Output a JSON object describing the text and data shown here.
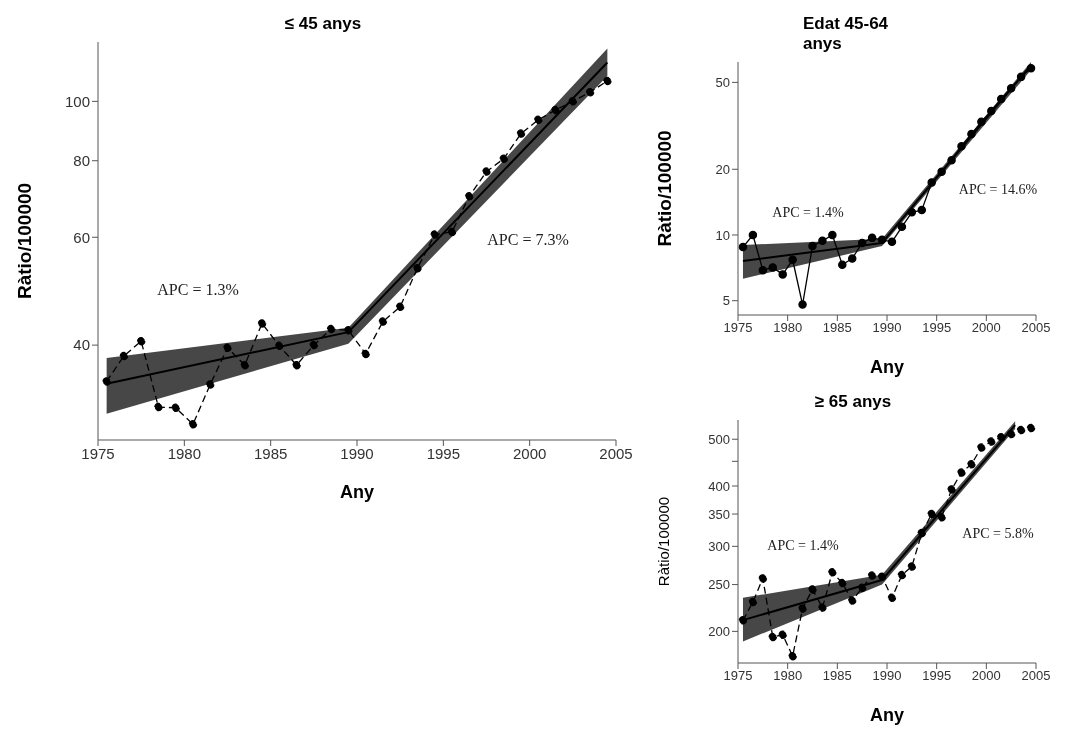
{
  "chart_data": [
    {
      "type": "line",
      "title": "≤ 45 anys",
      "xlabel": "Any",
      "ylabel": "Ràtio/100000",
      "log": "y",
      "xlim": [
        1975,
        2005
      ],
      "xticks": [
        1975,
        1980,
        1985,
        1990,
        1995,
        2000,
        2005
      ],
      "ylim": [
        28,
        125
      ],
      "yticks": [
        40,
        60,
        80,
        100
      ],
      "annotations": [
        "APC = 1.3%",
        "APC = 7.3%"
      ],
      "series": [
        {
          "color": "#000000",
          "marker": "circle",
          "line_style": "dashed",
          "x": [
            1975.5,
            1976.5,
            1977.5,
            1978.5,
            1979.5,
            1980.5,
            1981.5,
            1982.5,
            1983.5,
            1984.5,
            1985.5,
            1986.5,
            1987.5,
            1988.5,
            1989.5,
            1990.5,
            1991.5,
            1992.5,
            1993.5,
            1994.5,
            1995.5,
            1996.5,
            1997.5,
            1998.5,
            1999.5,
            2000.5,
            2001.5,
            2002.5,
            2003.5,
            2004.5
          ],
          "values": [
            34.9,
            38.4,
            40.6,
            31.7,
            31.6,
            29.7,
            34.5,
            39.6,
            37.1,
            43.4,
            39.9,
            37.1,
            40.0,
            42.5,
            42.3,
            38.7,
            43.7,
            46.2,
            53.4,
            60.6,
            61.2,
            70.0,
            76.8,
            80.6,
            88.6,
            93.3,
            96.8,
            100,
            103.5,
            108
          ]
        },
        {
          "color": "#000000",
          "marker": "none",
          "line_style": "solid",
          "x": [
            1975.5,
            1989.5,
            2004.5
          ],
          "values": [
            34.6,
            42.0,
            115.7
          ],
          "lower": [
            30.9,
            40.2,
            110
          ],
          "upper": [
            38.1,
            42.7,
            122
          ]
        }
      ]
    },
    {
      "type": "line",
      "title": "Edat 45-64 anys",
      "xlabel": "Any",
      "ylabel": "Ràtio/100000",
      "log": "y",
      "xlim": [
        1975,
        2005
      ],
      "xticks": [
        1975,
        1980,
        1985,
        1990,
        1995,
        2000,
        2005
      ],
      "ylim": [
        4.3,
        62
      ],
      "yticks": [
        5,
        10,
        20,
        50
      ],
      "annotations": [
        "APC = 1.4%",
        "APC = 14.6%"
      ],
      "series": [
        {
          "color": "#000000",
          "marker": "circle",
          "line_style": "solid",
          "x": [
            1975.5,
            1976.5,
            1977.5,
            1978.5,
            1979.5,
            1980.5,
            1981.5,
            1982.5,
            1983.5,
            1984.5,
            1985.5,
            1986.5,
            1987.5,
            1988.5,
            1989.5,
            1990.5,
            1991.5,
            1992.5,
            1993.5,
            1994.5,
            1995.5,
            1996.5,
            1997.5,
            1998.5,
            1999.5,
            2000.5,
            2001.5,
            2002.5,
            2003.5,
            2004.5
          ],
          "values": [
            8.8,
            10.0,
            6.9,
            7.1,
            6.6,
            7.7,
            4.8,
            8.9,
            9.4,
            10.0,
            7.3,
            7.8,
            9.2,
            9.7,
            9.5,
            9.3,
            10.9,
            12.7,
            13.0,
            17.4,
            19.5,
            22,
            25.5,
            29,
            33,
            37,
            42,
            47,
            53,
            58
          ]
        },
        {
          "color": "#000000",
          "marker": "none",
          "line_style": "solid",
          "x": [
            1975.5,
            1989.5,
            2004.5
          ],
          "values": [
            7.6,
            9.2,
            60
          ],
          "lower": [
            6.3,
            8.9,
            57
          ],
          "upper": [
            9.0,
            9.6,
            62
          ]
        }
      ]
    },
    {
      "type": "line",
      "title": "≥ 65 anys",
      "xlabel": "Any",
      "ylabel": "Ràtio/100000",
      "log": "y",
      "xlim": [
        1975,
        2005
      ],
      "xticks": [
        1975,
        1980,
        1985,
        1990,
        1995,
        2000,
        2005
      ],
      "ylim": [
        172,
        548
      ],
      "yticks": [
        200,
        250,
        300,
        350,
        400,
        {
          "value": 450,
          "label": null
        },
        500
      ],
      "annotations": [
        "APC = 1.4%",
        "APC = 5.8%"
      ],
      "series": [
        {
          "color": "#000000",
          "marker": "circle",
          "line_style": "dashed",
          "x": [
            1975.5,
            1976.5,
            1977.5,
            1978.5,
            1979.5,
            1980.5,
            1981.5,
            1982.5,
            1983.5,
            1984.5,
            1985.5,
            1986.5,
            1987.5,
            1988.5,
            1989.5,
            1990.5,
            1991.5,
            1992.5,
            1993.5,
            1994.5,
            1995.5,
            1996.5,
            1997.5,
            1998.5,
            1999.5,
            2000.5,
            2001.5,
            2002.5,
            2003.5,
            2004.5
          ],
          "values": [
            210.8,
            230,
            257.5,
            194.6,
            196.8,
            177.7,
            223,
            244.3,
            224,
            265,
            251.8,
            231.7,
            246.2,
            261,
            259.6,
            234.7,
            261.7,
            272.4,
            319.6,
            350.1,
            344.6,
            393.6,
            426.5,
            443.7,
            480.6,
            494.6,
            505,
            512.6,
            522.4,
            527.5
          ]
        },
        {
          "color": "#000000",
          "marker": "none",
          "line_style": "solid",
          "x": [
            1975.5,
            1989.5,
            2002.9
          ],
          "values": [
            211,
            255.5,
            535
          ],
          "lower": [
            190.6,
            250,
            525
          ],
          "upper": [
            234.7,
            262,
            545
          ]
        }
      ]
    }
  ]
}
